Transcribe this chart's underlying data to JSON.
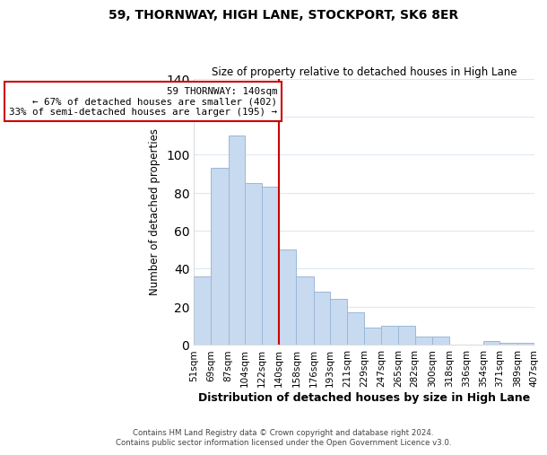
{
  "title": "59, THORNWAY, HIGH LANE, STOCKPORT, SK6 8ER",
  "subtitle": "Size of property relative to detached houses in High Lane",
  "xlabel": "Distribution of detached houses by size in High Lane",
  "ylabel": "Number of detached properties",
  "bar_color": "#c8daf0",
  "bar_edge_color": "#9ab8d8",
  "vline_x": 140,
  "vline_color": "#cc0000",
  "annotation_text": "59 THORNWAY: 140sqm\n← 67% of detached houses are smaller (402)\n33% of semi-detached houses are larger (195) →",
  "annotation_box_color": "white",
  "annotation_box_edge_color": "#cc0000",
  "bins": [
    51,
    69,
    87,
    104,
    122,
    140,
    158,
    176,
    193,
    211,
    229,
    247,
    265,
    282,
    300,
    318,
    336,
    354,
    371,
    389,
    407
  ],
  "bin_labels": [
    "51sqm",
    "69sqm",
    "87sqm",
    "104sqm",
    "122sqm",
    "140sqm",
    "158sqm",
    "176sqm",
    "193sqm",
    "211sqm",
    "229sqm",
    "247sqm",
    "265sqm",
    "282sqm",
    "300sqm",
    "318sqm",
    "336sqm",
    "354sqm",
    "371sqm",
    "389sqm",
    "407sqm"
  ],
  "counts": [
    36,
    93,
    110,
    85,
    83,
    50,
    36,
    28,
    24,
    17,
    9,
    10,
    10,
    4,
    4,
    0,
    0,
    2,
    1,
    1
  ],
  "ylim": [
    0,
    140
  ],
  "yticks": [
    0,
    20,
    40,
    60,
    80,
    100,
    120,
    140
  ],
  "footer_text": "Contains HM Land Registry data © Crown copyright and database right 2024.\nContains public sector information licensed under the Open Government Licence v3.0.",
  "background_color": "#ffffff",
  "grid_color": "#dce8f5"
}
